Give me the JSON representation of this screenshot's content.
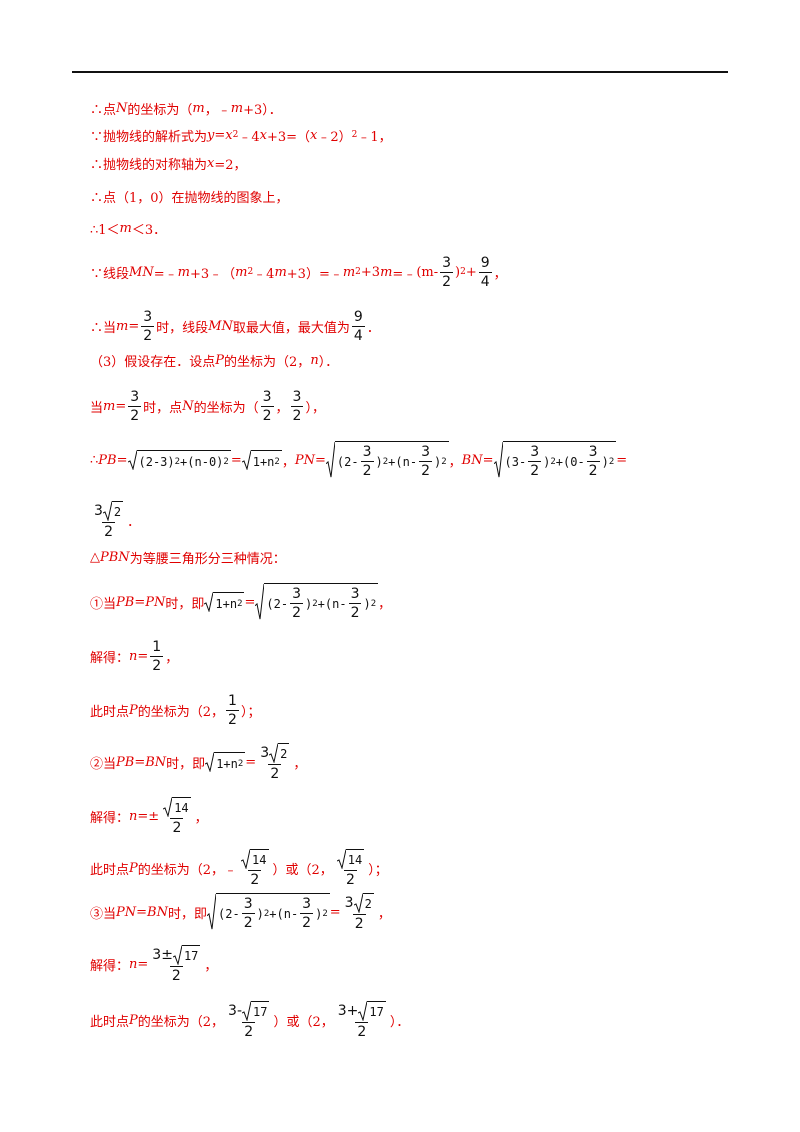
{
  "lines": [
    [
      "∴点",
      {
        "i": "N"
      },
      "的坐标为（",
      {
        "i": "m"
      },
      "，﹣",
      {
        "i": "m"
      },
      "+3）．"
    ],
    [
      "∵抛物线的解析式为",
      {
        "i": "y"
      },
      "=",
      {
        "i": "x"
      },
      {
        "sup": "2"
      },
      "﹣4",
      {
        "i": "x"
      },
      "+3=（",
      {
        "i": "x"
      },
      "﹣2）",
      {
        "sup": "2"
      },
      "﹣1，"
    ],
    [
      "∴抛物线的对称轴为",
      {
        "i": "x"
      },
      "=2，"
    ],
    [
      "∴点（1，0）在抛物线的图象上，"
    ],
    [
      "∴1＜",
      {
        "i": "m"
      },
      "＜3．"
    ],
    [
      "∵线段",
      {
        "i": "MN"
      },
      "=﹣",
      {
        "i": "m"
      },
      "+3﹣（",
      {
        "i": "m"
      },
      {
        "sup": "2"
      },
      "﹣4",
      {
        "i": "m"
      },
      "+3）=﹣",
      {
        "i": "m"
      },
      {
        "sup": "2"
      },
      "+3",
      {
        "i": "m"
      },
      "=﹣",
      "(m-",
      {
        "frac": [
          [
            "3"
          ],
          [
            "2"
          ]
        ]
      },
      ")",
      {
        "sup": "2"
      },
      "+",
      {
        "frac": [
          [
            "9"
          ],
          [
            "4"
          ]
        ]
      },
      "，"
    ],
    [
      "∴当",
      {
        "i": "m"
      },
      "=",
      {
        "frac": [
          [
            "3"
          ],
          [
            "2"
          ]
        ]
      },
      "时，线段",
      {
        "i": "MN"
      },
      "取最大值，最大值为",
      {
        "frac": [
          [
            "9"
          ],
          [
            "4"
          ]
        ]
      },
      "．"
    ],
    [
      "（3）假设存在．设点",
      {
        "i": "P"
      },
      "的坐标为（2，",
      {
        "i": "n"
      },
      "）．"
    ],
    [
      "当",
      {
        "i": "m"
      },
      "=",
      {
        "frac": [
          [
            "3"
          ],
          [
            "2"
          ]
        ]
      },
      "时，点",
      {
        "i": "N"
      },
      "的坐标为（",
      {
        "frac": [
          [
            "3"
          ],
          [
            "2"
          ]
        ]
      },
      "，",
      {
        "frac": [
          [
            "3"
          ],
          [
            "2"
          ]
        ]
      },
      "），"
    ],
    [
      "∴",
      {
        "i": "PB"
      },
      "=",
      {
        "sqrt": [
          "(2-3)",
          {
            "sup": "2"
          },
          "+(n-0)",
          {
            "sup": "2"
          }
        ]
      },
      "=",
      {
        "sqrt": [
          "1+n",
          {
            "sup": "2"
          }
        ]
      },
      "，",
      {
        "i": "PN"
      },
      "=",
      {
        "sqrt": [
          "(2-",
          {
            "frac": [
              [
                "3"
              ],
              [
                "2"
              ]
            ]
          },
          ")",
          {
            "sup": "2"
          },
          "+(n-",
          {
            "frac": [
              [
                "3"
              ],
              [
                "2"
              ]
            ]
          },
          ")",
          {
            "sup": "2"
          }
        ]
      },
      "，",
      {
        "i": "BN"
      },
      "=",
      {
        "sqrt": [
          "(3-",
          {
            "frac": [
              [
                "3"
              ],
              [
                "2"
              ]
            ]
          },
          ")",
          {
            "sup": "2"
          },
          "+(0-",
          {
            "frac": [
              [
                "3"
              ],
              [
                "2"
              ]
            ]
          },
          ")",
          {
            "sup": "2"
          }
        ]
      },
      "="
    ],
    [
      {
        "frac": [
          [
            "3",
            {
              "sqrt": [
                "2"
              ]
            }
          ],
          [
            "2"
          ]
        ]
      },
      "．"
    ],
    [
      "△",
      {
        "i": "PBN"
      },
      "为等腰三角形分三种情况："
    ],
    [
      "①当",
      {
        "i": "PB"
      },
      "=",
      {
        "i": "PN"
      },
      "时，即",
      {
        "sqrt": [
          "1+n",
          {
            "sup": "2"
          }
        ]
      },
      "=",
      {
        "sqrt": [
          "(2-",
          {
            "frac": [
              [
                "3"
              ],
              [
                "2"
              ]
            ]
          },
          ")",
          {
            "sup": "2"
          },
          "+(n-",
          {
            "frac": [
              [
                "3"
              ],
              [
                "2"
              ]
            ]
          },
          ")",
          {
            "sup": "2"
          }
        ]
      },
      "，"
    ],
    [
      "解得：",
      {
        "i": "n"
      },
      "=",
      {
        "frac": [
          [
            "1"
          ],
          [
            "2"
          ]
        ]
      },
      "，"
    ],
    [
      "此时点",
      {
        "i": "P"
      },
      "的坐标为（2，",
      {
        "frac": [
          [
            "1"
          ],
          [
            "2"
          ]
        ]
      },
      "）；"
    ],
    [
      "②当",
      {
        "i": "PB"
      },
      "=",
      {
        "i": "BN"
      },
      "时，即",
      {
        "sqrt": [
          "1+n",
          {
            "sup": "2"
          }
        ]
      },
      "=",
      {
        "frac": [
          [
            "3",
            {
              "sqrt": [
                "2"
              ]
            }
          ],
          [
            "2"
          ]
        ]
      },
      "，"
    ],
    [
      "解得：",
      {
        "i": "n"
      },
      "=±",
      {
        "frac": [
          [
            {
              "sqrt": [
                "14"
              ]
            }
          ],
          [
            "2"
          ]
        ]
      },
      "，"
    ],
    [
      "此时点",
      {
        "i": "P"
      },
      "的坐标为（2，﹣",
      {
        "frac": [
          [
            {
              "sqrt": [
                "14"
              ]
            }
          ],
          [
            "2"
          ]
        ]
      },
      "）或（2，",
      {
        "frac": [
          [
            {
              "sqrt": [
                "14"
              ]
            }
          ],
          [
            "2"
          ]
        ]
      },
      "）；"
    ],
    [
      "③当",
      {
        "i": "PN"
      },
      "=",
      {
        "i": "BN"
      },
      "时，即",
      {
        "sqrt": [
          "(2-",
          {
            "frac": [
              [
                "3"
              ],
              [
                "2"
              ]
            ]
          },
          ")",
          {
            "sup": "2"
          },
          "+(n-",
          {
            "frac": [
              [
                "3"
              ],
              [
                "2"
              ]
            ]
          },
          ")",
          {
            "sup": "2"
          }
        ]
      },
      "=",
      {
        "frac": [
          [
            "3",
            {
              "sqrt": [
                "2"
              ]
            }
          ],
          [
            "2"
          ]
        ]
      },
      "，"
    ],
    [
      "解得：",
      {
        "i": "n"
      },
      "=",
      {
        "frac": [
          [
            "3±",
            {
              "sqrt": [
                "17"
              ]
            }
          ],
          [
            "2"
          ]
        ]
      },
      "，"
    ],
    [
      "此时点",
      {
        "i": "P"
      },
      "的坐标为（2，",
      {
        "frac": [
          [
            "3-",
            {
              "sqrt": [
                "17"
              ]
            }
          ],
          [
            "2"
          ]
        ]
      },
      "）或（2，",
      {
        "frac": [
          [
            "3+",
            {
              "sqrt": [
                "17"
              ]
            }
          ],
          [
            "2"
          ]
        ]
      },
      "）．"
    ]
  ]
}
